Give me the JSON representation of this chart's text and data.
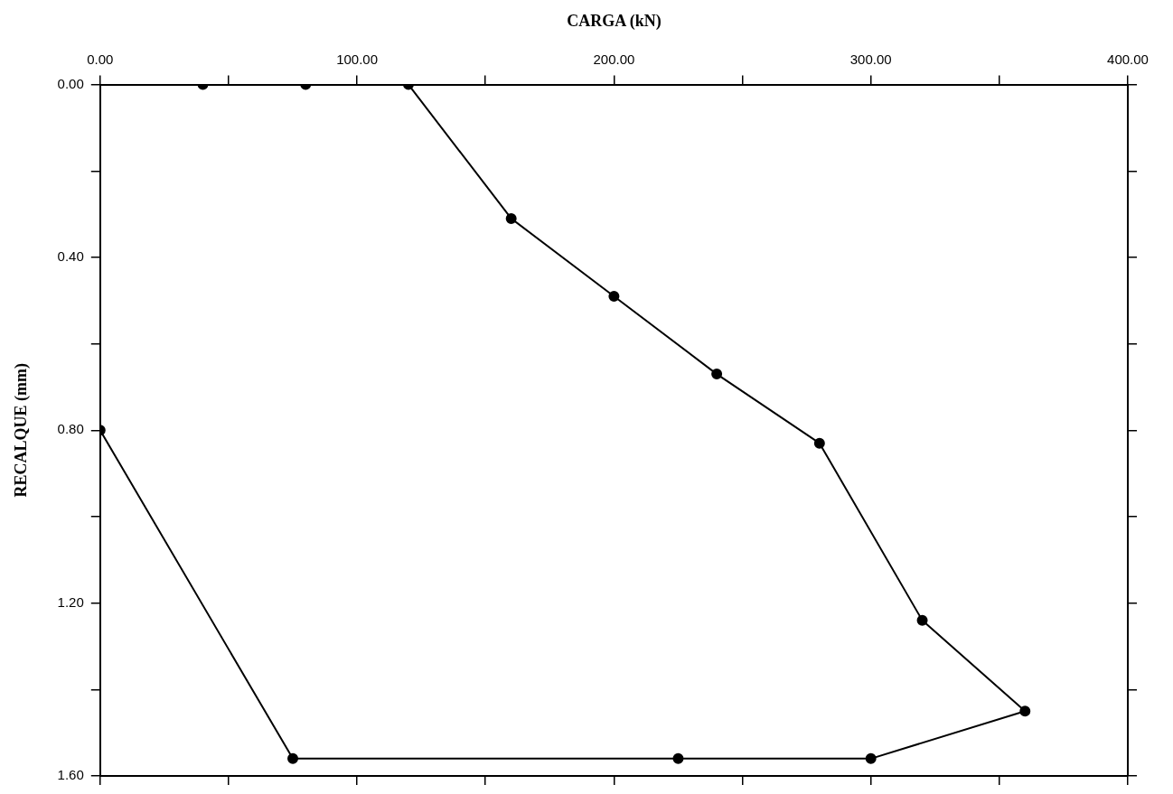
{
  "chart_data": {
    "type": "line",
    "xlabel": "CARGA (kN)",
    "ylabel": "RECALQUE (mm)",
    "x": [
      40,
      80,
      120,
      160,
      200,
      240,
      280,
      320,
      360,
      300,
      225,
      75,
      0
    ],
    "series": [
      {
        "color": "#000000",
        "values": [
          0,
          0,
          0,
          0.31,
          0.49,
          0.67,
          0.83,
          1.24,
          1.45,
          1.56,
          1.56,
          1.56,
          0.8
        ]
      }
    ],
    "xlim": [
      0,
      400
    ],
    "ylim": [
      1.6,
      0
    ],
    "xticks": [
      {
        "value": 0,
        "label": "0.00"
      },
      {
        "value": 50,
        "label": null
      },
      {
        "value": 100,
        "label": "100.00"
      },
      {
        "value": 150,
        "label": null
      },
      {
        "value": 200,
        "label": "200.00"
      },
      {
        "value": 250,
        "label": null
      },
      {
        "value": 300,
        "label": "300.00"
      },
      {
        "value": 350,
        "label": null
      },
      {
        "value": 400,
        "label": "400.00"
      }
    ],
    "yticks": [
      {
        "value": 0,
        "label": "0.00"
      },
      {
        "value": 0.2,
        "label": null
      },
      {
        "value": 0.4,
        "label": "0.40"
      },
      {
        "value": 0.6,
        "label": null
      },
      {
        "value": 0.8,
        "label": "0.80"
      },
      {
        "value": 1.0,
        "label": null
      },
      {
        "value": 1.2,
        "label": "1.20"
      },
      {
        "value": 1.4,
        "label": null
      },
      {
        "value": 1.6,
        "label": "1.60"
      }
    ],
    "marker": "circle",
    "line_style": "solid",
    "grid": false,
    "legend": false
  }
}
